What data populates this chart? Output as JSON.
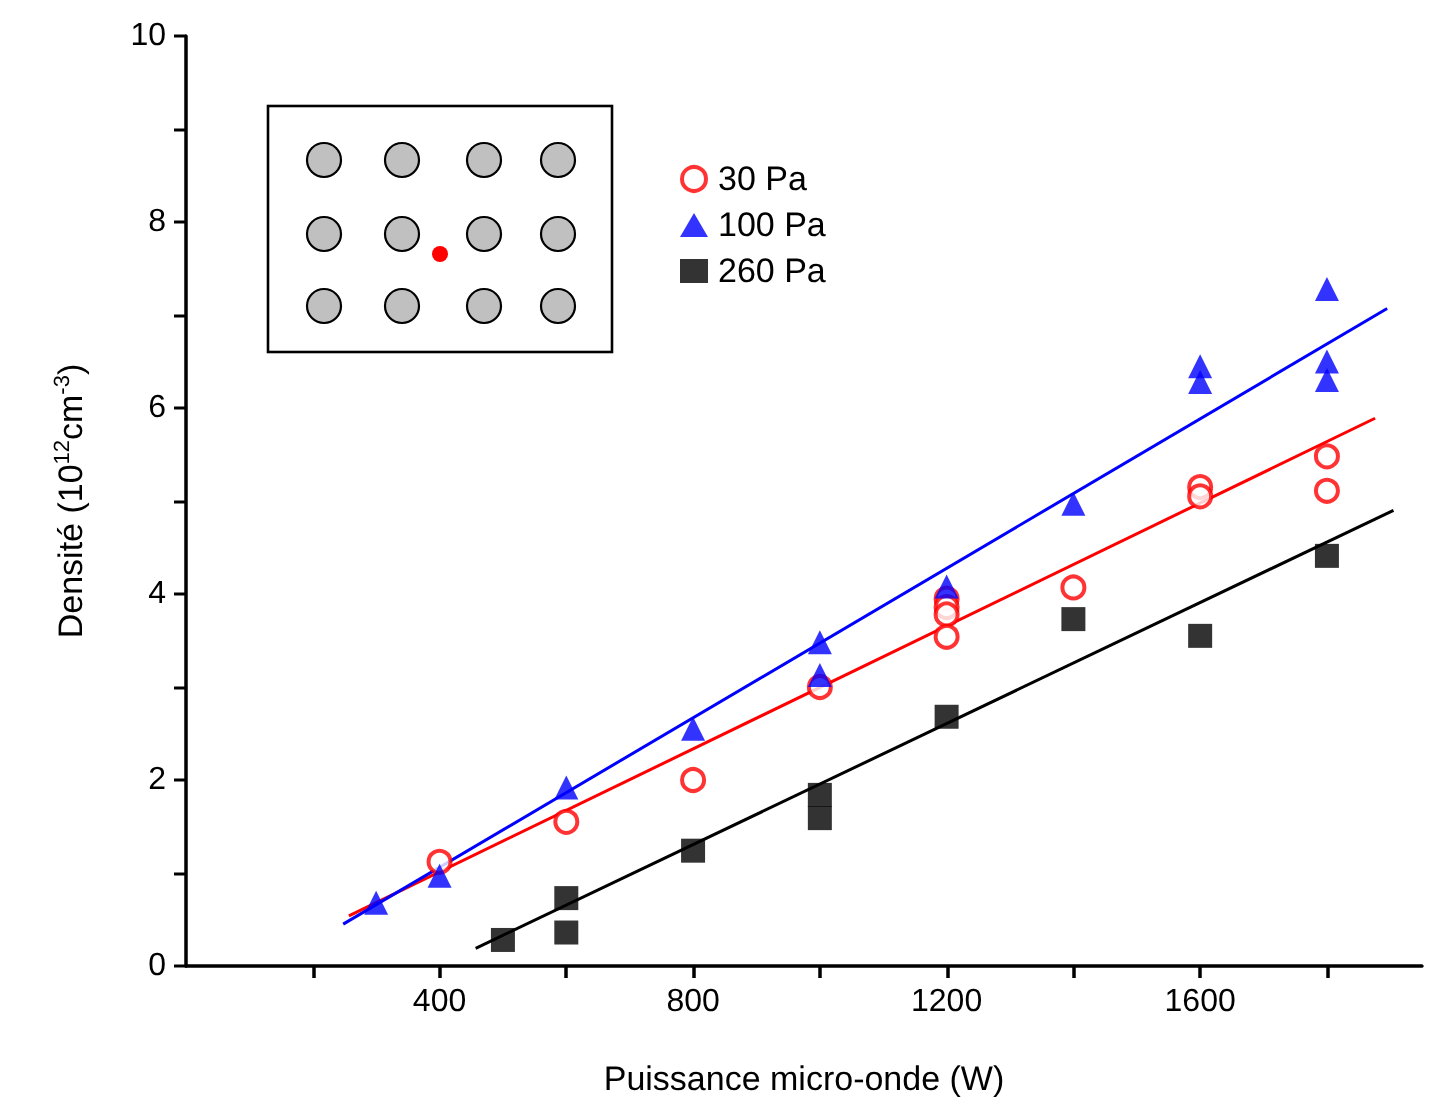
{
  "chart_data": {
    "type": "scatter",
    "xlabel": "Puissance micro-onde (W)",
    "ylabel": "Densité (10$^{12}$cm$^{-3}$)",
    "xlim": [
      0,
      1950
    ],
    "xticks": [
      {
        "value": 200,
        "label": null
      },
      400,
      {
        "value": 600,
        "label": null
      },
      800,
      {
        "value": 1000,
        "label": null
      },
      1200,
      {
        "value": 1400,
        "label": null
      },
      1600,
      {
        "value": 1800,
        "label": null
      }
    ],
    "ylim": [
      0,
      10
    ],
    "yticks": [
      0,
      {
        "value": 1,
        "label": null
      },
      2,
      {
        "value": 3,
        "label": null
      },
      4,
      {
        "value": 5,
        "label": null
      },
      6,
      {
        "value": 7,
        "label": null
      },
      8,
      {
        "value": 9,
        "label": null
      },
      10
    ],
    "grid": false,
    "legend": "top left",
    "series": [
      {
        "name": "30 Pa",
        "color": "#ff0000",
        "marker": "circle",
        "x": [
          400,
          600,
          800,
          1000,
          1200,
          1200,
          1200,
          1200,
          1400,
          1600,
          1600,
          1800,
          1800
        ],
        "values": [
          1.12,
          1.55,
          2.0,
          3.0,
          3.95,
          3.86,
          3.78,
          3.54,
          4.07,
          5.15,
          5.05,
          5.48,
          5.11
        ]
      },
      {
        "name": "100 Pa",
        "color": "#0000ff",
        "marker": "triangle",
        "x": [
          300,
          400,
          600,
          800,
          1000,
          1000,
          1200,
          1400,
          1600,
          1600,
          1800,
          1800,
          1800
        ],
        "values": [
          0.68,
          0.97,
          1.92,
          2.55,
          3.48,
          3.13,
          4.08,
          4.97,
          6.45,
          6.28,
          7.28,
          6.5,
          6.3
        ]
      },
      {
        "name": "260 Pa",
        "color": "#000000",
        "marker": "square",
        "x": [
          500,
          600,
          600,
          800,
          1000,
          1000,
          1200,
          1400,
          1600,
          1800
        ],
        "values": [
          0.28,
          0.73,
          0.36,
          1.24,
          1.84,
          1.59,
          2.68,
          3.73,
          3.55,
          4.41
        ]
      },
      {
        "type": "line",
        "color": "#ff0000",
        "marker": "none",
        "x": [
          257,
          1876
        ],
        "values": [
          0.54,
          5.89
        ]
      },
      {
        "type": "line",
        "color": "#0000ff",
        "marker": "none",
        "x": [
          248,
          1895
        ],
        "values": [
          0.45,
          7.07
        ]
      },
      {
        "type": "line",
        "color": "#000000",
        "marker": "none",
        "x": [
          457,
          1905
        ],
        "values": [
          0.19,
          4.9
        ]
      }
    ]
  }
}
